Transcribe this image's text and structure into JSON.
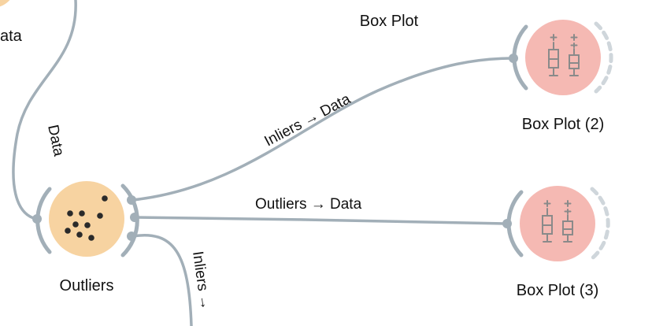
{
  "canvas_title": "Box Plot",
  "nodes": {
    "data_partial": {
      "label": "ata",
      "color": "#f7d3a1"
    },
    "outliers": {
      "label": "Outliers",
      "color": "#f7d3a1",
      "icon": "scatter-dots-icon"
    },
    "box_plot_2": {
      "label": "Box Plot (2)",
      "color": "#f5b9b3",
      "icon": "boxplot-icon"
    },
    "box_plot_3": {
      "label": "Box Plot (3)",
      "color": "#f5b9b3",
      "icon": "boxplot-icon"
    }
  },
  "links": {
    "data_to_outliers": "Data",
    "outliers_to_box2": "Inliers → Data",
    "outliers_to_box3": "Outliers → Data",
    "outliers_down": "Inliers →"
  },
  "colors": {
    "link": "#a2afb8",
    "orange_node": "#f7d3a1",
    "red_node": "#f5b9b3",
    "dot": "#2a2a2a"
  }
}
